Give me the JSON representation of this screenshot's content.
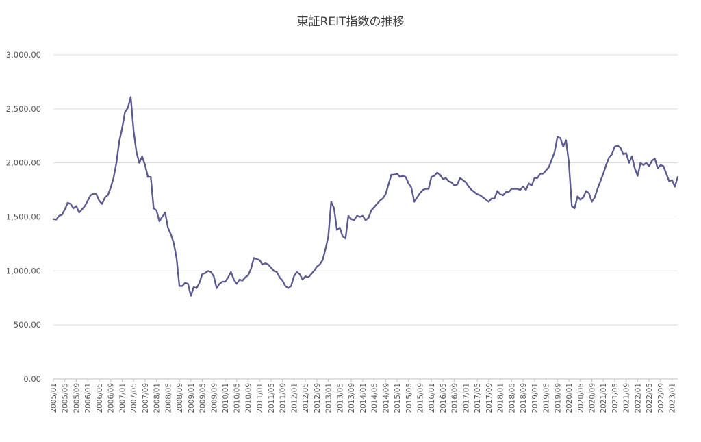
{
  "chart_data": {
    "type": "line",
    "title": "東証REIT指数の推移",
    "xlabel": "",
    "ylabel": "",
    "ylim": [
      0,
      3000
    ],
    "yticks": [
      "0.00",
      "500.00",
      "1,000.00",
      "1,500.00",
      "2,000.00",
      "2,500.00",
      "3,000.00"
    ],
    "ytick_values": [
      0,
      500,
      1000,
      1500,
      2000,
      2500,
      3000
    ],
    "grid": "horizontal",
    "x_start": "2005/01",
    "x_end": "2023/05",
    "x_tick_labels": [
      "2005/01",
      "2005/05",
      "2005/09",
      "2006/01",
      "2006/05",
      "2006/09",
      "2007/01",
      "2007/05",
      "2007/09",
      "2008/01",
      "2008/05",
      "2008/09",
      "2009/01",
      "2009/05",
      "2009/09",
      "2010/01",
      "2010/05",
      "2010/09",
      "2011/01",
      "2011/05",
      "2011/09",
      "2012/01",
      "2012/05",
      "2012/09",
      "2013/01",
      "2013/05",
      "2013/09",
      "2014/01",
      "2014/05",
      "2014/09",
      "2015/01",
      "2015/05",
      "2015/09",
      "2016/01",
      "2016/05",
      "2016/09",
      "2017/01",
      "2017/05",
      "2017/09",
      "2018/01",
      "2018/05",
      "2018/09",
      "2019/01",
      "2019/05",
      "2019/09",
      "2020/01",
      "2020/05",
      "2020/09",
      "2021/01",
      "2021/05",
      "2021/09",
      "2022/01",
      "2022/05",
      "2022/09",
      "2023/01"
    ],
    "series": [
      {
        "color": "#5b5b8f",
        "values": [
          1480,
          1475,
          1510,
          1520,
          1570,
          1630,
          1620,
          1580,
          1600,
          1540,
          1570,
          1600,
          1650,
          1700,
          1715,
          1710,
          1650,
          1620,
          1680,
          1700,
          1770,
          1860,
          2000,
          2200,
          2320,
          2470,
          2510,
          2610,
          2300,
          2100,
          2000,
          2060,
          1980,
          1870,
          1870,
          1580,
          1560,
          1460,
          1500,
          1540,
          1400,
          1340,
          1260,
          1120,
          860,
          860,
          890,
          880,
          770,
          850,
          840,
          890,
          970,
          980,
          1000,
          990,
          950,
          840,
          880,
          900,
          900,
          940,
          990,
          920,
          880,
          920,
          910,
          940,
          960,
          1020,
          1120,
          1110,
          1100,
          1060,
          1070,
          1060,
          1030,
          1000,
          990,
          940,
          910,
          860,
          840,
          860,
          950,
          990,
          970,
          920,
          950,
          940,
          970,
          1000,
          1040,
          1060,
          1100,
          1200,
          1320,
          1640,
          1580,
          1380,
          1400,
          1320,
          1300,
          1510,
          1480,
          1470,
          1510,
          1500,
          1510,
          1470,
          1490,
          1560,
          1590,
          1620,
          1650,
          1670,
          1710,
          1800,
          1890,
          1890,
          1900,
          1870,
          1880,
          1870,
          1810,
          1770,
          1640,
          1680,
          1720,
          1750,
          1760,
          1760,
          1870,
          1880,
          1910,
          1890,
          1850,
          1860,
          1830,
          1820,
          1790,
          1800,
          1860,
          1840,
          1820,
          1780,
          1750,
          1730,
          1710,
          1700,
          1680,
          1660,
          1640,
          1670,
          1670,
          1740,
          1710,
          1700,
          1730,
          1730,
          1760,
          1760,
          1760,
          1750,
          1780,
          1750,
          1810,
          1790,
          1860,
          1860,
          1900,
          1900,
          1930,
          1960,
          2030,
          2100,
          2240,
          2230,
          2150,
          2210,
          2000,
          1600,
          1580,
          1690,
          1660,
          1680,
          1740,
          1720,
          1640,
          1680,
          1760,
          1830,
          1900,
          1980,
          2050,
          2080,
          2150,
          2160,
          2140,
          2080,
          2090,
          2000,
          2060,
          1950,
          1880,
          2000,
          1980,
          2000,
          1970,
          2020,
          2040,
          1950,
          1980,
          1970,
          1900,
          1830,
          1840,
          1780,
          1870
        ]
      }
    ]
  }
}
